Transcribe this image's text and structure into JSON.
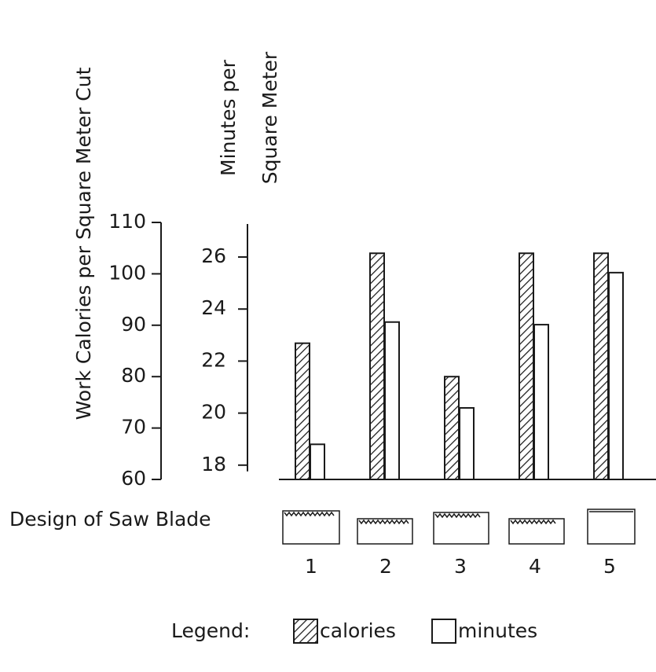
{
  "chart_data": {
    "type": "bar",
    "ylabel": "Work Calories per Square Meter Cut",
    "y2label": [
      "Minutes per",
      "Square Meter"
    ],
    "xlabel": "Design of Saw Blade",
    "categories": [
      "1",
      "2",
      "3",
      "4",
      "5"
    ],
    "series": [
      {
        "name": "calories",
        "color": "#1a1a1a",
        "hatch": true,
        "values": [
          86.5,
          104,
          80,
          104,
          104
        ]
      },
      {
        "name": "minutes",
        "color": "#1a1a1a",
        "hatch": false,
        "axis": "y2",
        "values": [
          18.8,
          23.5,
          20.2,
          23.4,
          25.4
        ]
      }
    ],
    "ylim": [
      60,
      110
    ],
    "yticks": [
      60,
      70,
      80,
      90,
      100,
      110
    ],
    "y2lim": [
      17.45,
      27.33
    ],
    "y2ticks": [
      18,
      20,
      22,
      24,
      26
    ],
    "legend_title": "Legend:"
  }
}
